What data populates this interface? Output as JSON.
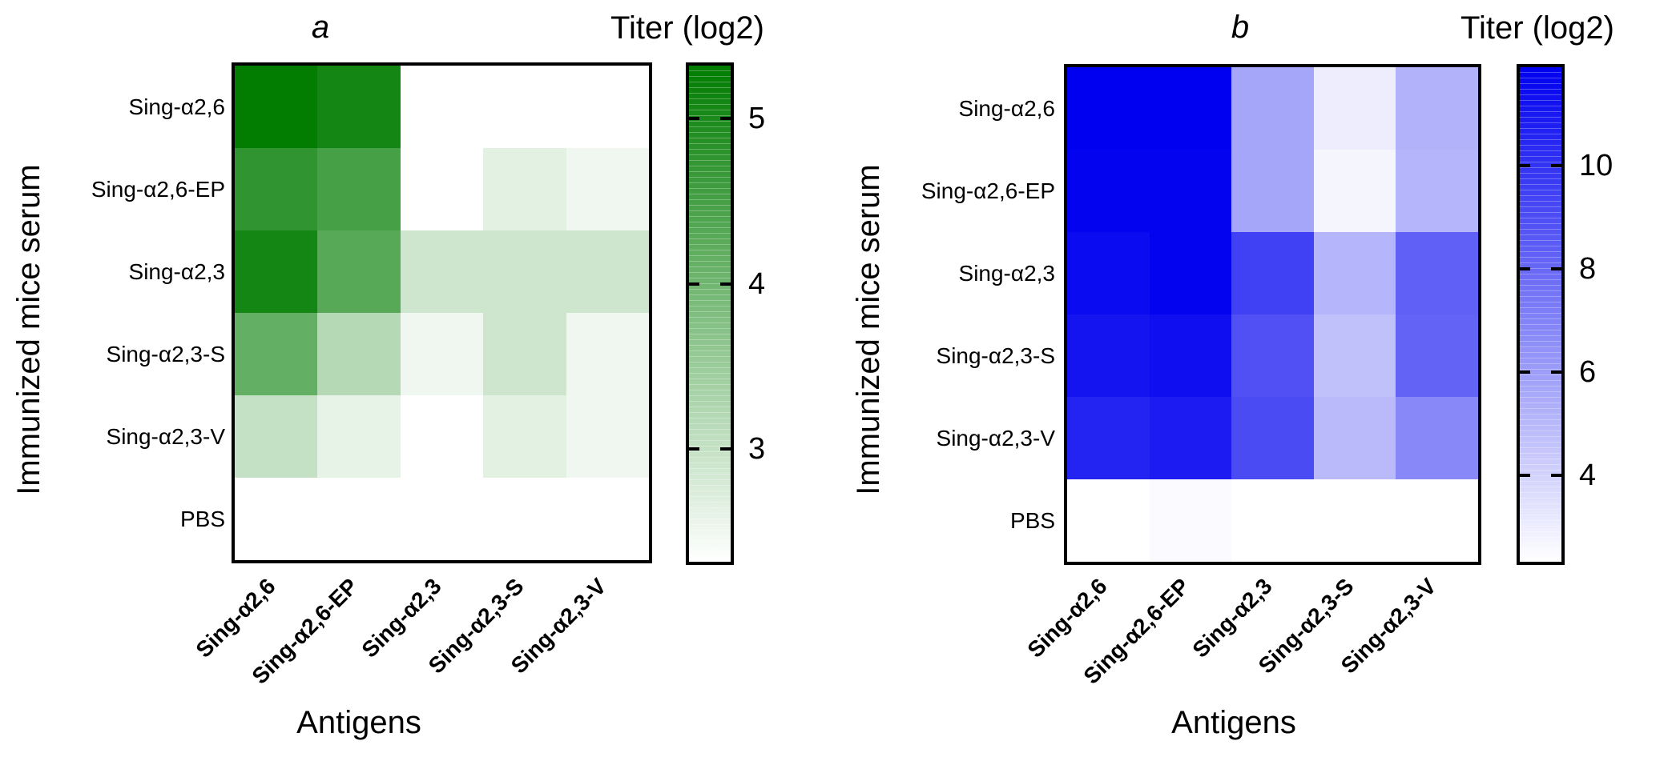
{
  "chart_data": [
    {
      "type": "heatmap",
      "panel_label": "a",
      "colorbar_title": "Titer (log2)",
      "xlabel": "Antigens",
      "ylabel": "Immunized mice serum",
      "x_categories": [
        "Sing-α2,6",
        "Sing-α2,6-EP",
        "Sing-α2,3",
        "Sing-α2,3-S",
        "Sing-α2,3-V"
      ],
      "y_categories": [
        "Sing-α2,6",
        "Sing-α2,6-EP",
        "Sing-α2,3",
        "Sing-α2,3-S",
        "Sing-α2,3-V",
        "PBS"
      ],
      "values_log2_titer": [
        [
          5.3,
          5.1,
          2.3,
          2.3,
          2.3
        ],
        [
          4.75,
          4.5,
          2.3,
          2.65,
          2.5
        ],
        [
          5.1,
          4.3,
          2.9,
          2.9,
          2.9
        ],
        [
          4.15,
          3.2,
          2.5,
          2.9,
          2.5
        ],
        [
          3.0,
          2.6,
          2.3,
          2.65,
          2.5
        ],
        [
          2.3,
          2.3,
          2.3,
          2.3,
          2.3
        ]
      ],
      "scale": {
        "vmin": 2.32,
        "vmax": 5.32,
        "color_min": "#FFFFFF",
        "color_max": "#007C00",
        "ticks": [
          5,
          4,
          3
        ],
        "legend_position": "right"
      }
    },
    {
      "type": "heatmap",
      "panel_label": "b",
      "colorbar_title": "Titer (log2)",
      "xlabel": "Antigens",
      "ylabel": "Immunized mice serum",
      "x_categories": [
        "Sing-α2,6",
        "Sing-α2,6-EP",
        "Sing-α2,3",
        "Sing-α2,3-S",
        "Sing-α2,3-V"
      ],
      "y_categories": [
        "Sing-α2,6",
        "Sing-α2,6-EP",
        "Sing-α2,3",
        "Sing-α2,3-S",
        "Sing-α2,3-V",
        "PBS"
      ],
      "values_log2_titer": [
        [
          11.9,
          11.9,
          5.7,
          3.0,
          5.2
        ],
        [
          11.8,
          11.8,
          5.7,
          2.7,
          5.1
        ],
        [
          11.5,
          11.8,
          9.5,
          5.1,
          8.3
        ],
        [
          11.15,
          11.4,
          8.9,
          4.7,
          8.2
        ],
        [
          10.6,
          10.9,
          9.1,
          4.9,
          6.8
        ],
        [
          2.3,
          2.5,
          2.3,
          2.3,
          2.3
        ]
      ],
      "scale": {
        "vmin": 2.32,
        "vmax": 11.91,
        "color_min": "#FFFFFF",
        "color_max": "#0000F0",
        "ticks": [
          10,
          8,
          6,
          4
        ],
        "legend_position": "right"
      }
    }
  ]
}
